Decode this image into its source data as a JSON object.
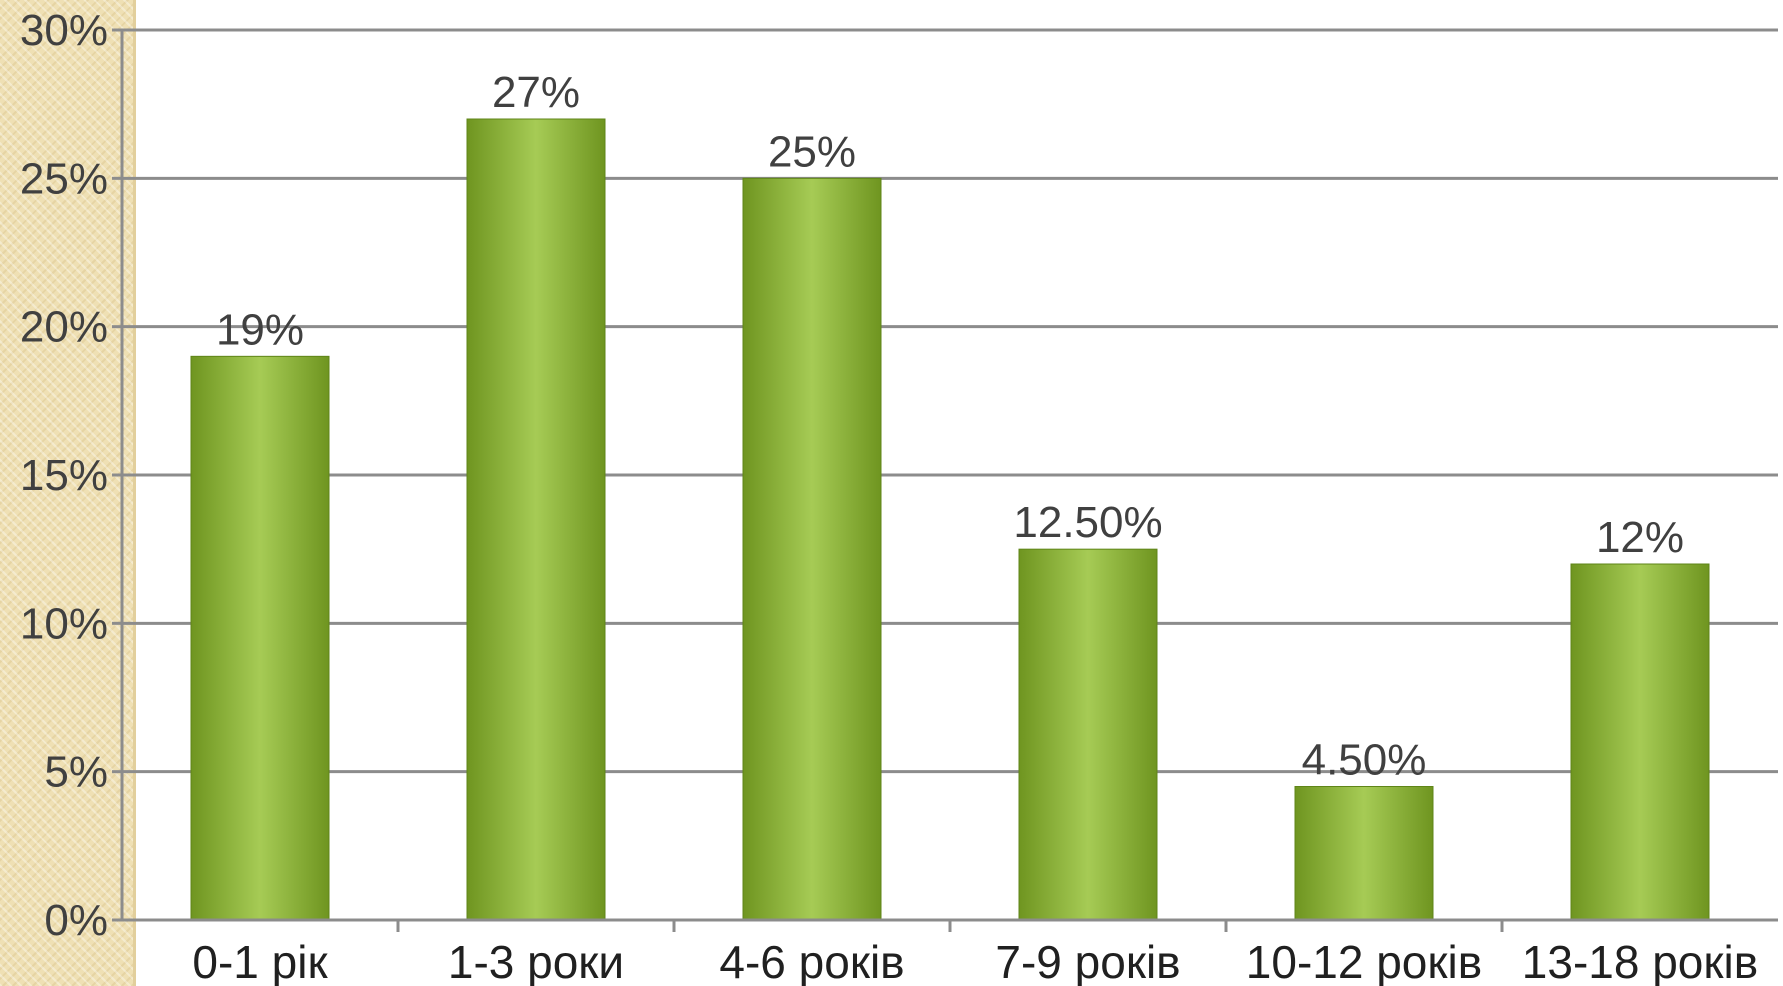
{
  "chart_data": {
    "type": "bar",
    "categories": [
      "0-1 рік",
      "1-3 роки",
      "4-6 років",
      "7-9 років",
      "10-12 років",
      "13-18 років"
    ],
    "values": [
      19,
      27,
      25,
      12.5,
      4.5,
      12
    ],
    "data_labels": [
      "19%",
      "27%",
      "25%",
      "12.50%",
      "4.50%",
      "12%"
    ],
    "y_ticks": [
      "0%",
      "5%",
      "10%",
      "15%",
      "20%",
      "25%",
      "30%"
    ],
    "ylim": [
      0,
      30
    ],
    "grid": true,
    "legend": "none",
    "title": "",
    "xlabel": "",
    "ylabel": "",
    "colors": {
      "bar_dark": "#6f9520",
      "bar_light": "#a6cb55",
      "grid": "#8c8c8c",
      "strip": "#efe0b4"
    }
  }
}
